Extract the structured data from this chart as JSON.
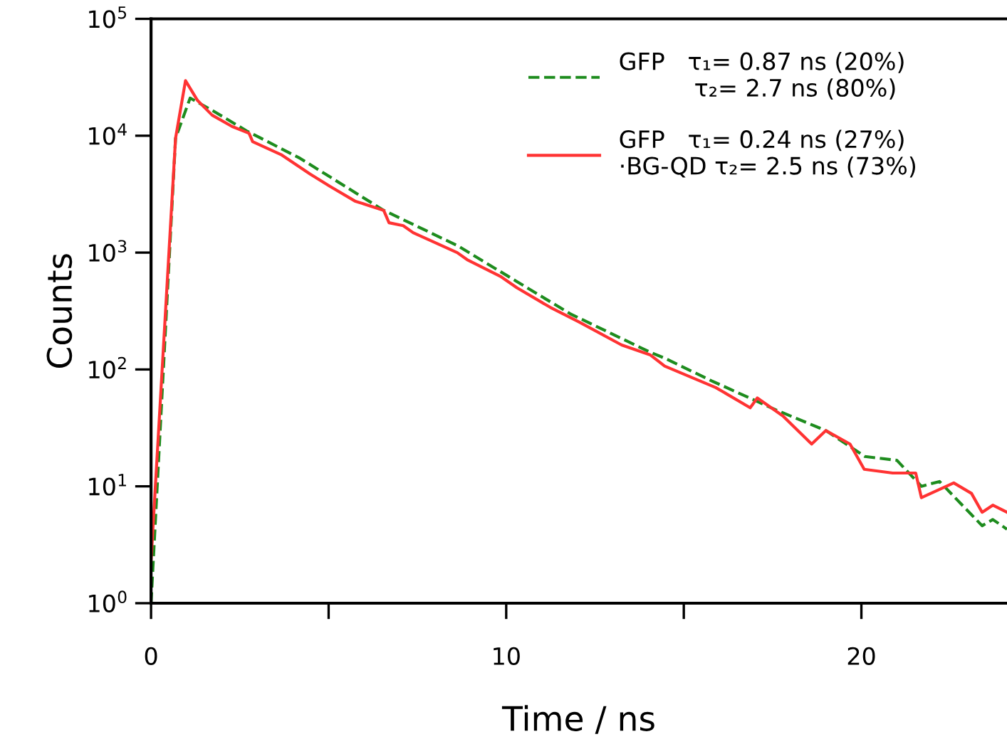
{
  "chart_data": {
    "type": "line",
    "xlabel": "Time / ns",
    "ylabel": "Counts",
    "log": "y",
    "xlim": [
      0,
      24.1
    ],
    "xticks": [
      0,
      {
        "value": 5,
        "label": null
      },
      10,
      {
        "value": 15,
        "label": null
      },
      20
    ],
    "ylim": [
      1,
      100000
    ],
    "yticks": [
      {
        "value": 1,
        "label": "10$^{0}$"
      },
      {
        "value": 10,
        "label": "10$^{1}$"
      },
      {
        "value": 100,
        "label": "10$^{2}$"
      },
      {
        "value": 1000,
        "label": "10$^{3}$"
      },
      {
        "value": 10000,
        "label": "10$^{4}$"
      },
      {
        "value": 100000,
        "label": "10$^{5}$"
      }
    ],
    "grid": false,
    "legend": "top right",
    "series": [
      {
        "name": "GFP   τ₁= 0.87 ns (20%)\n          τ₂= 2.7 ns (80%)",
        "color": "#1e8c1e",
        "line_style": "dashed",
        "x": [
          0,
          0.69,
          1.1,
          1.72,
          2.69,
          4.2,
          6.55,
          8.62,
          10.28,
          11.8,
          14.06,
          14.46,
          15.78,
          17.6,
          19.0,
          20.1,
          21.0,
          21.69,
          22.2,
          23.4,
          23.7,
          24.1
        ],
        "values": [
          1,
          9500,
          21000,
          16500,
          11000,
          6400,
          2300,
          1150,
          570,
          300,
          140,
          125,
          80,
          45,
          30,
          18,
          16.7,
          10,
          11,
          4.6,
          5.2,
          4.3
        ]
      },
      {
        "name": "GFP   τ₁= 0.24 ns (27%)\n·BG-QD τ₂= 2.5 ns (73%)",
        "color": "#ff3333",
        "line_style": "solid",
        "x": [
          0,
          0.69,
          0.97,
          1.31,
          1.72,
          2.28,
          2.76,
          2.86,
          3.66,
          4.48,
          5.03,
          5.74,
          6.55,
          6.7,
          7.1,
          7.38,
          8.62,
          8.9,
          9.86,
          10.3,
          11.24,
          12.05,
          13.25,
          14.06,
          14.46,
          15.9,
          16.87,
          17.07,
          17.79,
          18.6,
          19.0,
          19.68,
          20.08,
          20.88,
          21.53,
          21.69,
          22.6,
          23.1,
          23.4,
          23.7,
          24.1
        ],
        "values": [
          2.3,
          9500,
          29600,
          20000,
          15000,
          12000,
          10500,
          8900,
          6900,
          4700,
          3700,
          2760,
          2300,
          1800,
          1700,
          1480,
          1000,
          870,
          620,
          500,
          340,
          255,
          162,
          133,
          107,
          70,
          47,
          57,
          40,
          23,
          30,
          23,
          14,
          13,
          13,
          8,
          10.7,
          8.7,
          6,
          6.9,
          6
        ]
      }
    ]
  }
}
